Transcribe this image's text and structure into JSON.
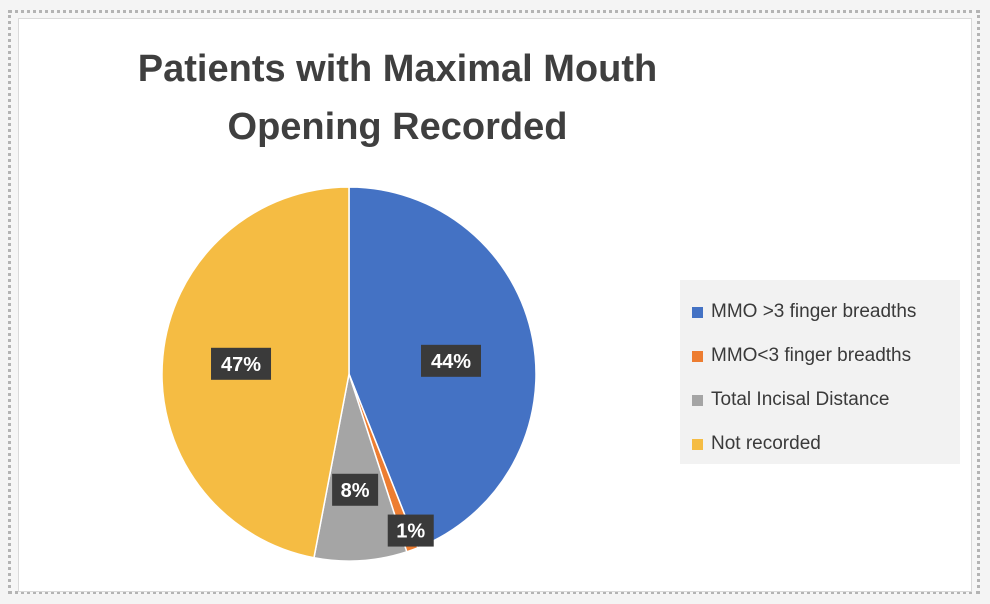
{
  "chart_data": {
    "type": "pie",
    "title": "Patients with Maximal Mouth Opening Recorded",
    "categories": [
      "MMO >3 finger breadths",
      "MMO<3 finger breadths",
      "Total Incisal Distance",
      "Not recorded"
    ],
    "values": [
      44,
      1,
      8,
      47
    ],
    "data_labels": [
      "44%",
      "1%",
      "8%",
      "47%"
    ],
    "colors": [
      "#4472c4",
      "#ed7d31",
      "#a5a5a5",
      "#f5bc43"
    ],
    "legend_position": "right",
    "start_angle": "12 o'clock",
    "direction": "clockwise"
  }
}
